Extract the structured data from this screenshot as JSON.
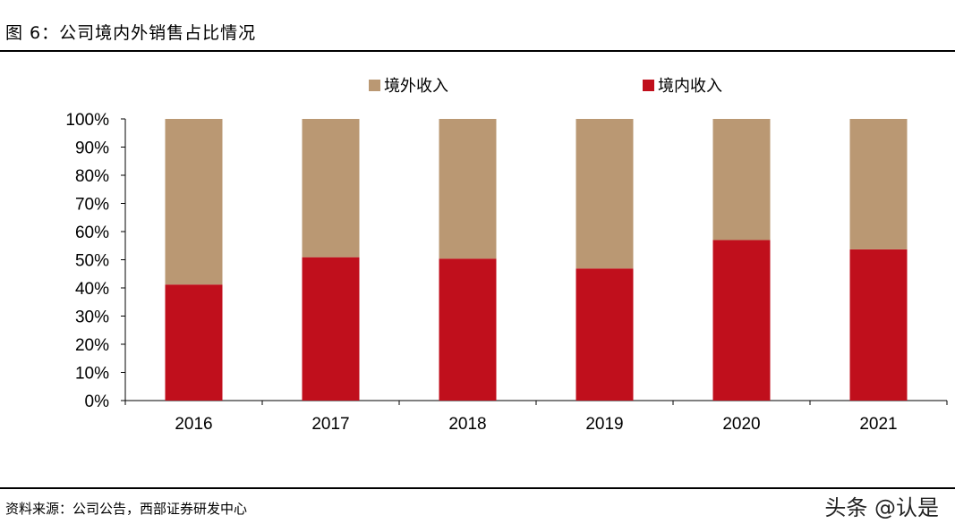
{
  "title": "图 6：公司境内外销售占比情况",
  "source": "资料来源：公司公告，西部证券研发中心",
  "watermark": "头条 @认是",
  "chart_data": {
    "type": "bar",
    "stacked": true,
    "categories": [
      "2016",
      "2017",
      "2018",
      "2019",
      "2020",
      "2021"
    ],
    "series": [
      {
        "name": "境内收入",
        "color": "#C00F1C",
        "values": [
          41.2,
          50.9,
          50.4,
          46.9,
          57.0,
          53.7
        ]
      },
      {
        "name": "境外收入",
        "color": "#BA9873",
        "values": [
          58.8,
          49.1,
          49.6,
          53.1,
          43.0,
          46.3
        ]
      }
    ],
    "ylim": [
      0,
      100
    ],
    "yticks": [
      "0%",
      "10%",
      "20%",
      "30%",
      "40%",
      "50%",
      "60%",
      "70%",
      "80%",
      "90%",
      "100%"
    ],
    "grid": false,
    "legend": "top"
  }
}
